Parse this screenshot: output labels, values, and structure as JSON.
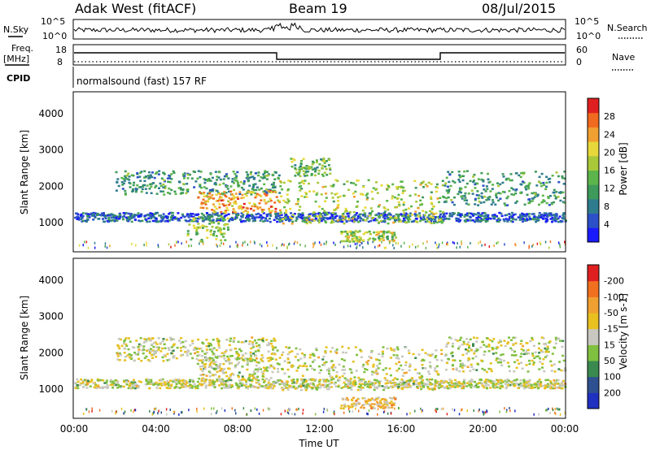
{
  "header": {
    "radar": "Adak West (fitACF)",
    "beam": "Beam 19",
    "date": "08/Jul/2015"
  },
  "noise_panel": {
    "left_label": "N.Sky",
    "right_label": "N.Search",
    "tick_top": "10^5",
    "tick_bottom": "10^0"
  },
  "freq_panel": {
    "left_label_1": "Freq.",
    "left_label_2": "[MHz]",
    "tick_top": "18",
    "tick_bottom": "8",
    "right_tick_top": "60",
    "right_tick_bottom": "0",
    "right_label": "Nave"
  },
  "cpid_panel": {
    "left_label": "CPID",
    "program": "normalsound (fast) 157 RF"
  },
  "x_axis": {
    "label": "Time UT",
    "ticks": [
      "00:00",
      "04:00",
      "08:00",
      "12:00",
      "16:00",
      "20:00",
      "00:00"
    ]
  },
  "chart_data": [
    {
      "type": "heatmap",
      "name": "power",
      "ylabel": "Slant Range [km]",
      "yticks": [
        "1000",
        "2000",
        "3000",
        "4000"
      ],
      "ylim": [
        200,
        4600
      ],
      "xlim_hours": [
        0,
        24
      ],
      "colorbar_label": "Power [dB]",
      "colorbar_ticks": [
        "4",
        "8",
        "12",
        "16",
        "20",
        "24",
        "28"
      ],
      "colors": [
        "#1a1aff",
        "#2b50c8",
        "#2f7c8e",
        "#3e9a5a",
        "#5bb54a",
        "#a8c83a",
        "#e6d83a",
        "#f0a030",
        "#f06a20",
        "#e02020"
      ],
      "echo_bands": [
        {
          "t0": 0.0,
          "t1": 24.0,
          "r0": 1050,
          "r1": 1300,
          "level": 0.18
        },
        {
          "t0": 2.0,
          "t1": 10.0,
          "r0": 1800,
          "r1": 2450,
          "level": 0.35
        },
        {
          "t0": 6.0,
          "t1": 10.0,
          "r0": 1300,
          "r1": 1900,
          "level": 0.75
        },
        {
          "t0": 10.0,
          "t1": 18.0,
          "r0": 1000,
          "r1": 2200,
          "level": 0.55
        },
        {
          "t0": 5.5,
          "t1": 7.5,
          "r0": 500,
          "r1": 1200,
          "level": 0.5
        },
        {
          "t0": 13.0,
          "t1": 15.7,
          "r0": 500,
          "r1": 800,
          "level": 0.55
        },
        {
          "t0": 18.0,
          "t1": 24.0,
          "r0": 1500,
          "r1": 2450,
          "level": 0.35
        },
        {
          "t0": 10.5,
          "t1": 12.5,
          "r0": 2300,
          "r1": 2800,
          "level": 0.45
        }
      ]
    },
    {
      "type": "heatmap",
      "name": "velocity",
      "ylabel": "Slant Range [km]",
      "yticks": [
        "1000",
        "2000",
        "3000",
        "4000"
      ],
      "ylim": [
        200,
        4600
      ],
      "xlim_hours": [
        0,
        24
      ],
      "colorbar_label": "Velocity [m s-1]",
      "colorbar_ticks": [
        "200",
        "100",
        "50",
        "15",
        "-15",
        "-50",
        "-100",
        "-200"
      ],
      "colors": [
        "#2030c0",
        "#2f5090",
        "#3a8a50",
        "#80c040",
        "#c8c8c0",
        "#e8c020",
        "#f0a030",
        "#f07020",
        "#e02020"
      ],
      "echo_bands": [
        {
          "t0": 0.0,
          "t1": 24.0,
          "r0": 1050,
          "r1": 1300,
          "level": 0.5
        },
        {
          "t0": 2.0,
          "t1": 10.0,
          "r0": 1800,
          "r1": 2450,
          "level": 0.5
        },
        {
          "t0": 6.0,
          "t1": 10.0,
          "r0": 1300,
          "r1": 1900,
          "level": 0.5
        },
        {
          "t0": 10.0,
          "t1": 18.0,
          "r0": 1000,
          "r1": 2200,
          "level": 0.5
        },
        {
          "t0": 13.0,
          "t1": 15.7,
          "r0": 500,
          "r1": 800,
          "level": 0.62
        },
        {
          "t0": 18.0,
          "t1": 24.0,
          "r0": 1500,
          "r1": 2450,
          "level": 0.5
        }
      ]
    }
  ]
}
